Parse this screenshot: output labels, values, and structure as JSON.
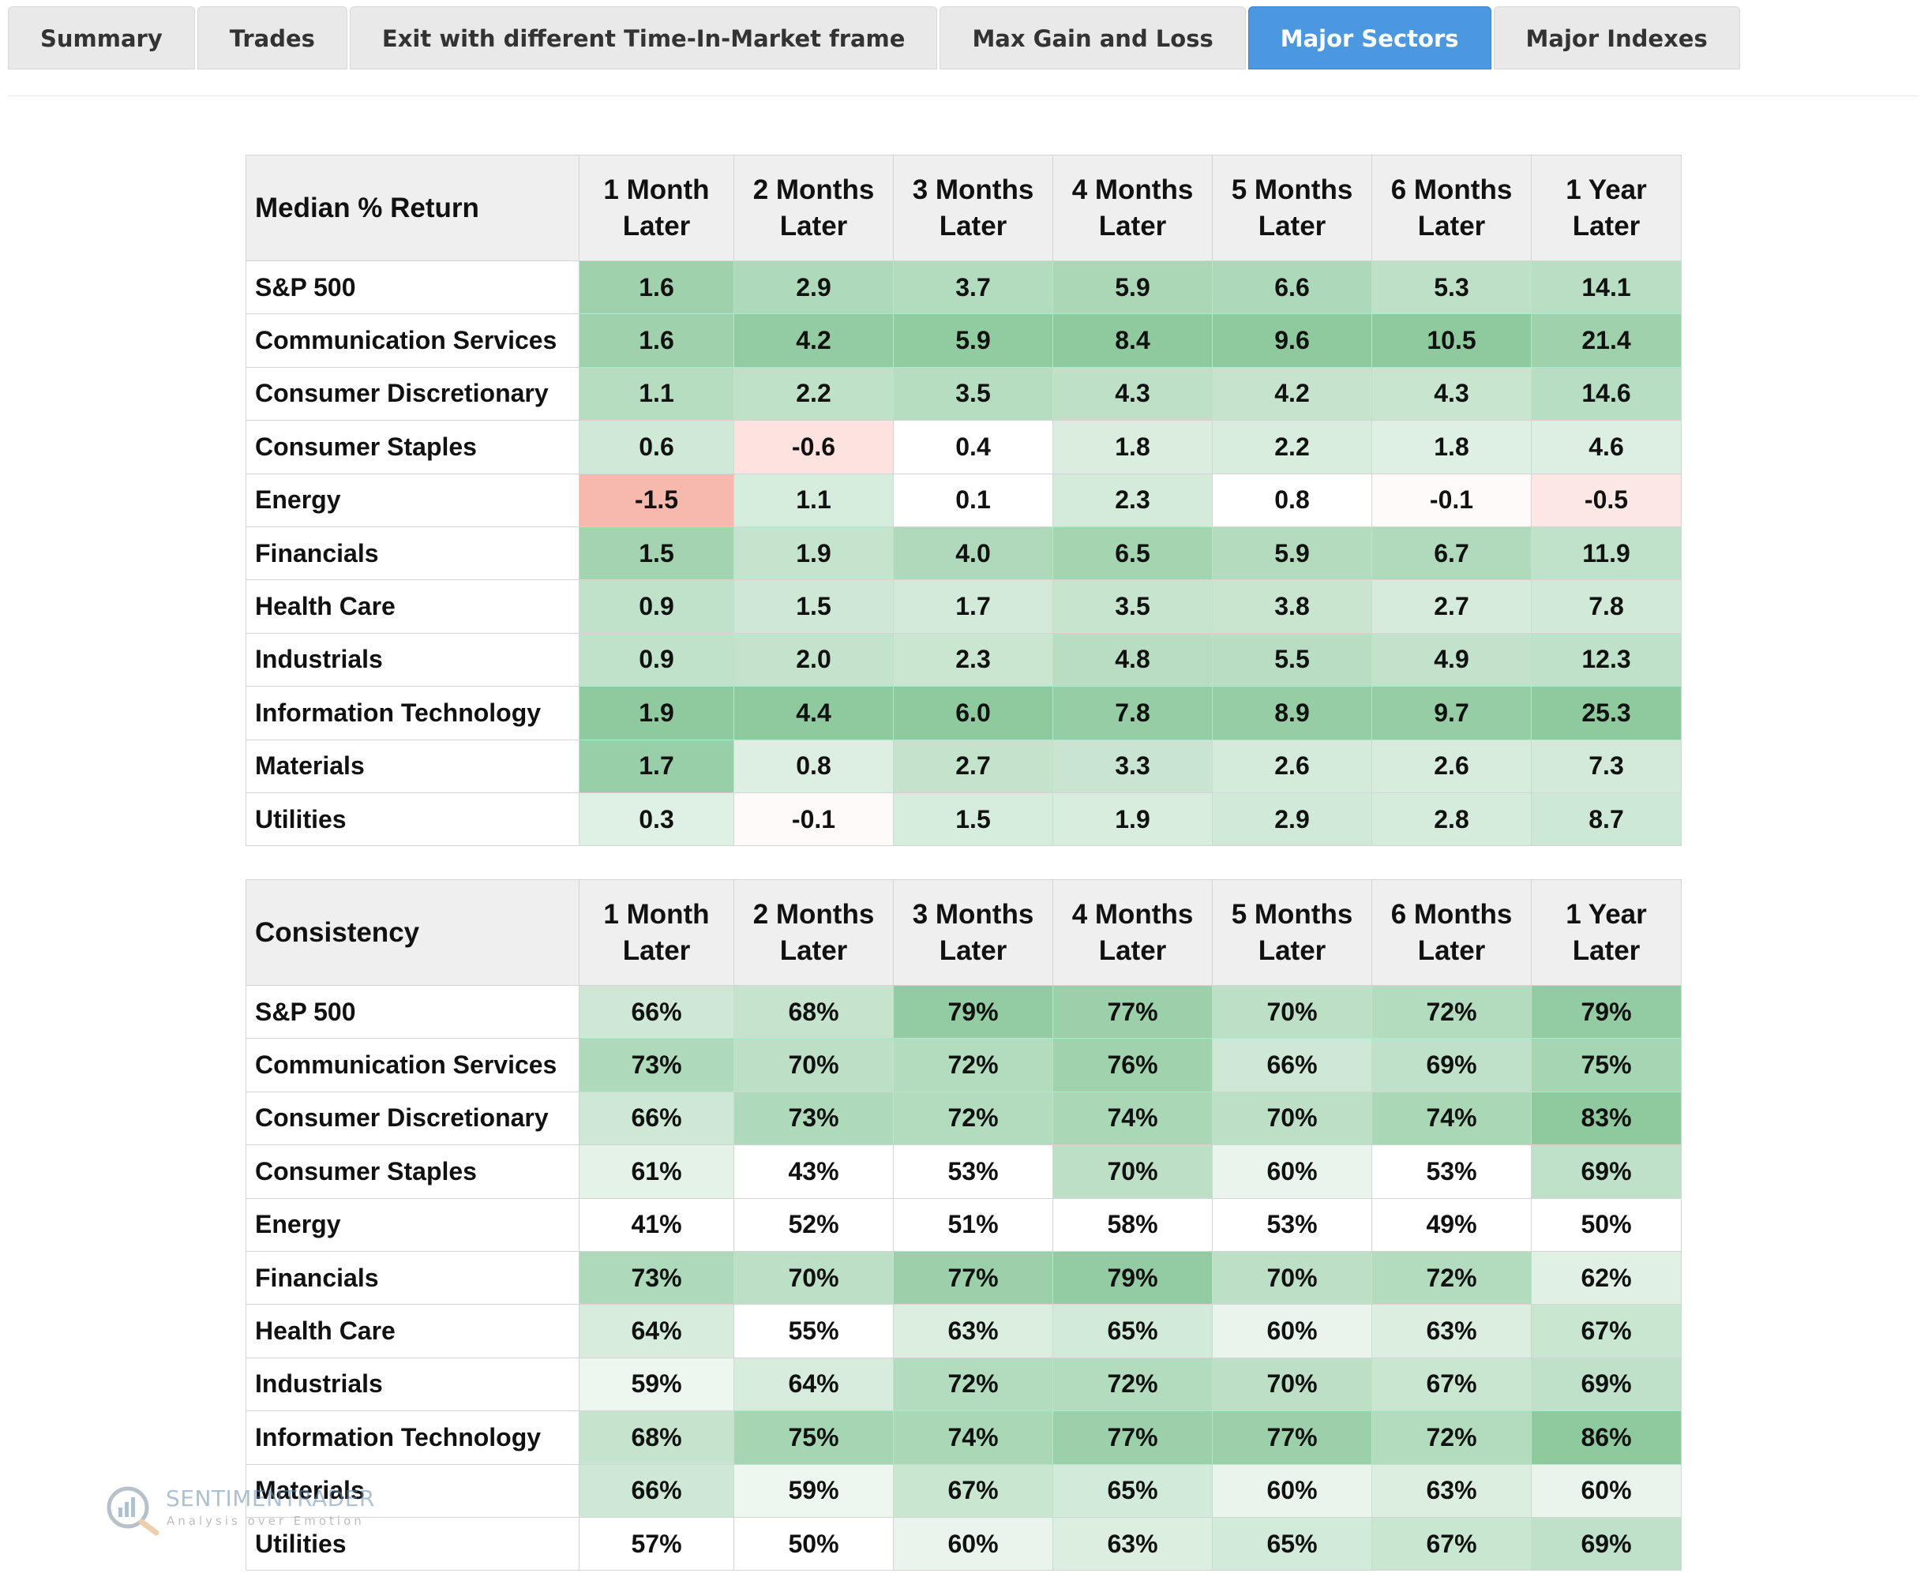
{
  "tabs": [
    {
      "label": "Summary",
      "active": false
    },
    {
      "label": "Trades",
      "active": false
    },
    {
      "label": "Exit with different Time-In-Market frame",
      "active": false
    },
    {
      "label": "Max Gain and Loss",
      "active": false
    },
    {
      "label": "Major Sectors",
      "active": true
    },
    {
      "label": "Major Indexes",
      "active": false
    }
  ],
  "colors": {
    "tab_active": "#4c98e0",
    "positive": "#8fca9f",
    "negative": "#f7b8ae"
  },
  "columns": [
    "1 Month Later",
    "2 Months Later",
    "3 Months Later",
    "4 Months Later",
    "5 Months Later",
    "6 Months Later",
    "1 Year Later"
  ],
  "median": {
    "title": "Median % Return",
    "rows": [
      {
        "label": "S&P 500",
        "values": [
          "1.6",
          "2.9",
          "3.7",
          "5.9",
          "6.6",
          "5.3",
          "14.1"
        ]
      },
      {
        "label": "Communication Services",
        "values": [
          "1.6",
          "4.2",
          "5.9",
          "8.4",
          "9.6",
          "10.5",
          "21.4"
        ]
      },
      {
        "label": "Consumer Discretionary",
        "values": [
          "1.1",
          "2.2",
          "3.5",
          "4.3",
          "4.2",
          "4.3",
          "14.6"
        ]
      },
      {
        "label": "Consumer Staples",
        "values": [
          "0.6",
          "-0.6",
          "0.4",
          "1.8",
          "2.2",
          "1.8",
          "4.6"
        ]
      },
      {
        "label": "Energy",
        "values": [
          "-1.5",
          "1.1",
          "0.1",
          "2.3",
          "0.8",
          "-0.1",
          "-0.5"
        ]
      },
      {
        "label": "Financials",
        "values": [
          "1.5",
          "1.9",
          "4.0",
          "6.5",
          "5.9",
          "6.7",
          "11.9"
        ]
      },
      {
        "label": "Health Care",
        "values": [
          "0.9",
          "1.5",
          "1.7",
          "3.5",
          "3.8",
          "2.7",
          "7.8"
        ]
      },
      {
        "label": "Industrials",
        "values": [
          "0.9",
          "2.0",
          "2.3",
          "4.8",
          "5.5",
          "4.9",
          "12.3"
        ]
      },
      {
        "label": "Information Technology",
        "values": [
          "1.9",
          "4.4",
          "6.0",
          "7.8",
          "8.9",
          "9.7",
          "25.3"
        ]
      },
      {
        "label": "Materials",
        "values": [
          "1.7",
          "0.8",
          "2.7",
          "3.3",
          "2.6",
          "2.6",
          "7.3"
        ]
      },
      {
        "label": "Utilities",
        "values": [
          "0.3",
          "-0.1",
          "1.5",
          "1.9",
          "2.9",
          "2.8",
          "8.7"
        ]
      }
    ]
  },
  "consistency": {
    "title": "Consistency",
    "rows": [
      {
        "label": "S&P 500",
        "values": [
          "66%",
          "68%",
          "79%",
          "77%",
          "70%",
          "72%",
          "79%"
        ]
      },
      {
        "label": "Communication Services",
        "values": [
          "73%",
          "70%",
          "72%",
          "76%",
          "66%",
          "69%",
          "75%"
        ]
      },
      {
        "label": "Consumer Discretionary",
        "values": [
          "66%",
          "73%",
          "72%",
          "74%",
          "70%",
          "74%",
          "83%"
        ]
      },
      {
        "label": "Consumer Staples",
        "values": [
          "61%",
          "43%",
          "53%",
          "70%",
          "60%",
          "53%",
          "69%"
        ]
      },
      {
        "label": "Energy",
        "values": [
          "41%",
          "52%",
          "51%",
          "58%",
          "53%",
          "49%",
          "50%"
        ]
      },
      {
        "label": "Financials",
        "values": [
          "73%",
          "70%",
          "77%",
          "79%",
          "70%",
          "72%",
          "62%"
        ]
      },
      {
        "label": "Health Care",
        "values": [
          "64%",
          "55%",
          "63%",
          "65%",
          "60%",
          "63%",
          "67%"
        ]
      },
      {
        "label": "Industrials",
        "values": [
          "59%",
          "64%",
          "72%",
          "72%",
          "70%",
          "67%",
          "69%"
        ]
      },
      {
        "label": "Information Technology",
        "values": [
          "68%",
          "75%",
          "74%",
          "77%",
          "77%",
          "72%",
          "86%"
        ]
      },
      {
        "label": "Materials",
        "values": [
          "66%",
          "59%",
          "67%",
          "65%",
          "60%",
          "63%",
          "60%"
        ]
      },
      {
        "label": "Utilities",
        "values": [
          "57%",
          "50%",
          "60%",
          "63%",
          "65%",
          "67%",
          "69%"
        ]
      }
    ]
  },
  "watermark": {
    "brand": "SENTIMENTRADER",
    "tagline": "Analysis over Emotion"
  }
}
